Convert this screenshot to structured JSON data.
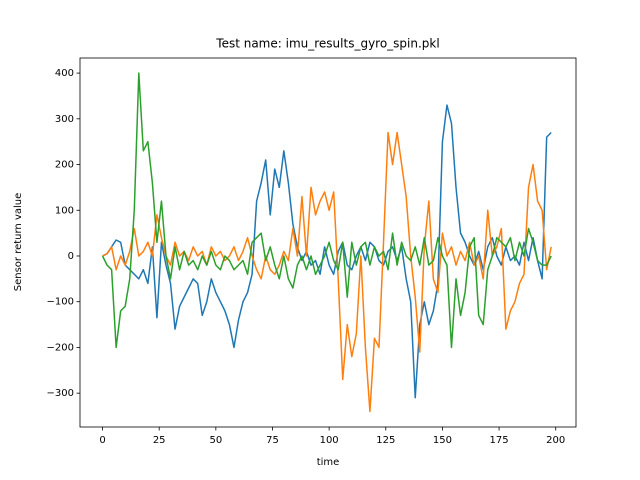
{
  "chart_data": {
    "type": "line",
    "title": "Test name: imu_results_gyro_spin.pkl",
    "xlabel": "time",
    "ylabel": "Sensor return value",
    "x": [
      0,
      2,
      4,
      6,
      8,
      10,
      12,
      14,
      16,
      18,
      20,
      22,
      24,
      26,
      28,
      30,
      32,
      34,
      36,
      38,
      40,
      42,
      44,
      46,
      48,
      50,
      52,
      54,
      56,
      58,
      60,
      62,
      64,
      66,
      68,
      70,
      72,
      74,
      76,
      78,
      80,
      82,
      84,
      86,
      88,
      90,
      92,
      94,
      96,
      98,
      100,
      102,
      104,
      106,
      108,
      110,
      112,
      114,
      116,
      118,
      120,
      122,
      124,
      126,
      128,
      130,
      132,
      134,
      136,
      138,
      140,
      142,
      144,
      146,
      148,
      150,
      152,
      154,
      156,
      158,
      160,
      162,
      164,
      166,
      168,
      170,
      172,
      174,
      176,
      178,
      180,
      182,
      184,
      186,
      188,
      190,
      192,
      194,
      196,
      198
    ],
    "series": [
      {
        "color": "#1f77b4",
        "values": [
          0,
          5,
          20,
          35,
          30,
          -20,
          -30,
          -40,
          -50,
          -30,
          -60,
          20,
          -135,
          30,
          -20,
          -60,
          -160,
          -110,
          -90,
          -70,
          -50,
          -60,
          -130,
          -100,
          -50,
          -80,
          -100,
          -120,
          -150,
          -200,
          -140,
          -100,
          -80,
          -40,
          120,
          160,
          210,
          90,
          190,
          150,
          230,
          160,
          70,
          20,
          -10,
          10,
          -20,
          -10,
          -40,
          20,
          -20,
          -40,
          10,
          30,
          -20,
          -30,
          0,
          20,
          -10,
          30,
          20,
          -10,
          -20,
          10,
          20,
          -10,
          20,
          -50,
          -100,
          -310,
          -150,
          -100,
          -150,
          -120,
          -60,
          250,
          330,
          290,
          150,
          50,
          30,
          0,
          -20,
          10,
          -30,
          20,
          40,
          0,
          -20,
          20,
          -10,
          0,
          -20,
          30,
          -10,
          40,
          -10,
          -50,
          260,
          270
        ]
      },
      {
        "color": "#ff7f0e",
        "values": [
          0,
          5,
          20,
          -30,
          0,
          -20,
          10,
          60,
          0,
          10,
          30,
          0,
          90,
          40,
          0,
          -20,
          30,
          0,
          10,
          -10,
          20,
          0,
          10,
          -20,
          20,
          0,
          10,
          -10,
          0,
          20,
          -10,
          10,
          40,
          0,
          -30,
          -50,
          0,
          -30,
          -40,
          -20,
          10,
          -10,
          60,
          0,
          130,
          0,
          150,
          90,
          120,
          140,
          100,
          140,
          -50,
          -270,
          -150,
          -220,
          -170,
          0,
          -200,
          -340,
          -180,
          -200,
          30,
          270,
          200,
          270,
          200,
          130,
          0,
          -90,
          -210,
          20,
          120,
          -50,
          -80,
          50,
          0,
          20,
          -20,
          10,
          -10,
          30,
          -20,
          0,
          -50,
          100,
          0,
          20,
          60,
          -160,
          -120,
          -100,
          -60,
          -40,
          150,
          200,
          120,
          100,
          -30,
          20
        ]
      },
      {
        "color": "#2ca02c",
        "values": [
          0,
          -20,
          -30,
          -200,
          -120,
          -110,
          -50,
          100,
          400,
          230,
          250,
          160,
          30,
          120,
          0,
          -50,
          20,
          -30,
          10,
          -20,
          -10,
          -30,
          0,
          -20,
          10,
          -20,
          -30,
          0,
          -10,
          -30,
          -20,
          -10,
          -40,
          30,
          40,
          50,
          -10,
          20,
          -20,
          -50,
          0,
          -50,
          -70,
          -20,
          0,
          -30,
          0,
          -40,
          -20,
          0,
          30,
          -10,
          -30,
          30,
          -90,
          30,
          -20,
          20,
          30,
          -20,
          20,
          0,
          10,
          -30,
          50,
          -20,
          30,
          0,
          -10,
          20,
          -20,
          40,
          -20,
          -10,
          40,
          0,
          -20,
          -200,
          -50,
          -130,
          -80,
          20,
          40,
          -130,
          -150,
          -30,
          0,
          40,
          30,
          20,
          40,
          -10,
          30,
          0,
          60,
          30,
          -10,
          -20,
          -20,
          0
        ]
      }
    ],
    "xlim": [
      -9.95,
      208.95
    ],
    "ylim": [
      -374,
      433
    ],
    "xticks": [
      0,
      25,
      50,
      75,
      100,
      125,
      150,
      175,
      200
    ],
    "yticks": [
      {
        "value": -300,
        "label": "−300"
      },
      {
        "value": -200,
        "label": "−200"
      },
      {
        "value": -100,
        "label": "−100"
      },
      0,
      100,
      200,
      300,
      400
    ]
  }
}
